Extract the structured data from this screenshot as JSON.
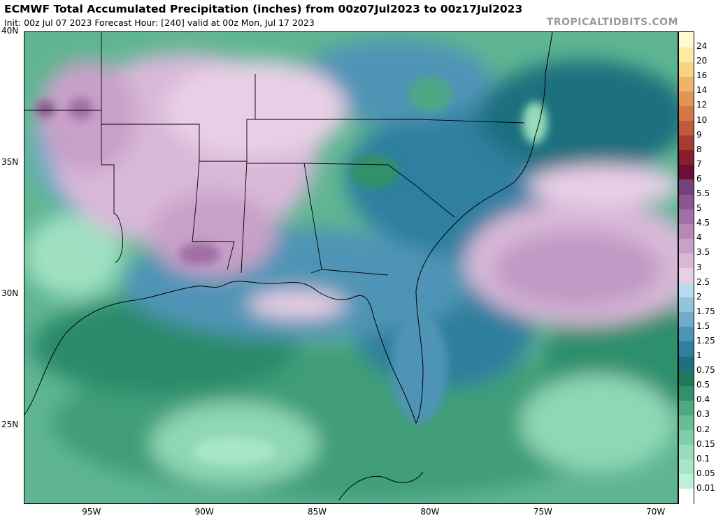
{
  "header": {
    "title": "ECMWF Total Accumulated Precipitation (inches) from 00z07Jul2023 to 00z17Jul2023",
    "subtitle": "Init: 00z Jul 07 2023   Forecast Hour: [240]   valid at 00z Mon, Jul 17 2023",
    "brand": "TROPICALTIDBITS.COM"
  },
  "map": {
    "lat_labels": [
      "40N",
      "35N",
      "30N",
      "25N"
    ],
    "lon_labels": [
      "95W",
      "90W",
      "85W",
      "80W",
      "75W",
      "70W"
    ],
    "lat_values": [
      40,
      35,
      30,
      25
    ],
    "lon_values": [
      -95,
      -90,
      -85,
      -80,
      -75,
      -70
    ],
    "extent": {
      "west": -98,
      "east": -69,
      "south": 22,
      "north": 40
    }
  },
  "legend": {
    "levels": [
      "0.01",
      "0.05",
      "0.1",
      "0.15",
      "0.2",
      "0.3",
      "0.4",
      "0.5",
      "0.75",
      "1",
      "1.25",
      "1.5",
      "1.75",
      "2",
      "2.5",
      "3",
      "3.5",
      "4",
      "4.5",
      "5",
      "5.5",
      "6",
      "7",
      "8",
      "9",
      "10",
      "12",
      "14",
      "16",
      "20",
      "24"
    ],
    "colors": [
      "#ffffff",
      "#bff0d8",
      "#a8e6c8",
      "#94dcba",
      "#7fceaa",
      "#66bd96",
      "#4ea882",
      "#33906b",
      "#1e7a58",
      "#1f6f7e",
      "#2f7fa0",
      "#4f94b6",
      "#6fabca",
      "#92c4dc",
      "#b8dcee",
      "#e8cfe6",
      "#d9b8d8",
      "#c8a0c8",
      "#b588b8",
      "#a070a6",
      "#8a5890",
      "#744279",
      "#6a0f35",
      "#8a1e2e",
      "#a63a35",
      "#bf5a40",
      "#d3774a",
      "#e29458",
      "#eeb46c",
      "#f5d482",
      "#faeea6",
      "#fdfbd0"
    ]
  }
}
